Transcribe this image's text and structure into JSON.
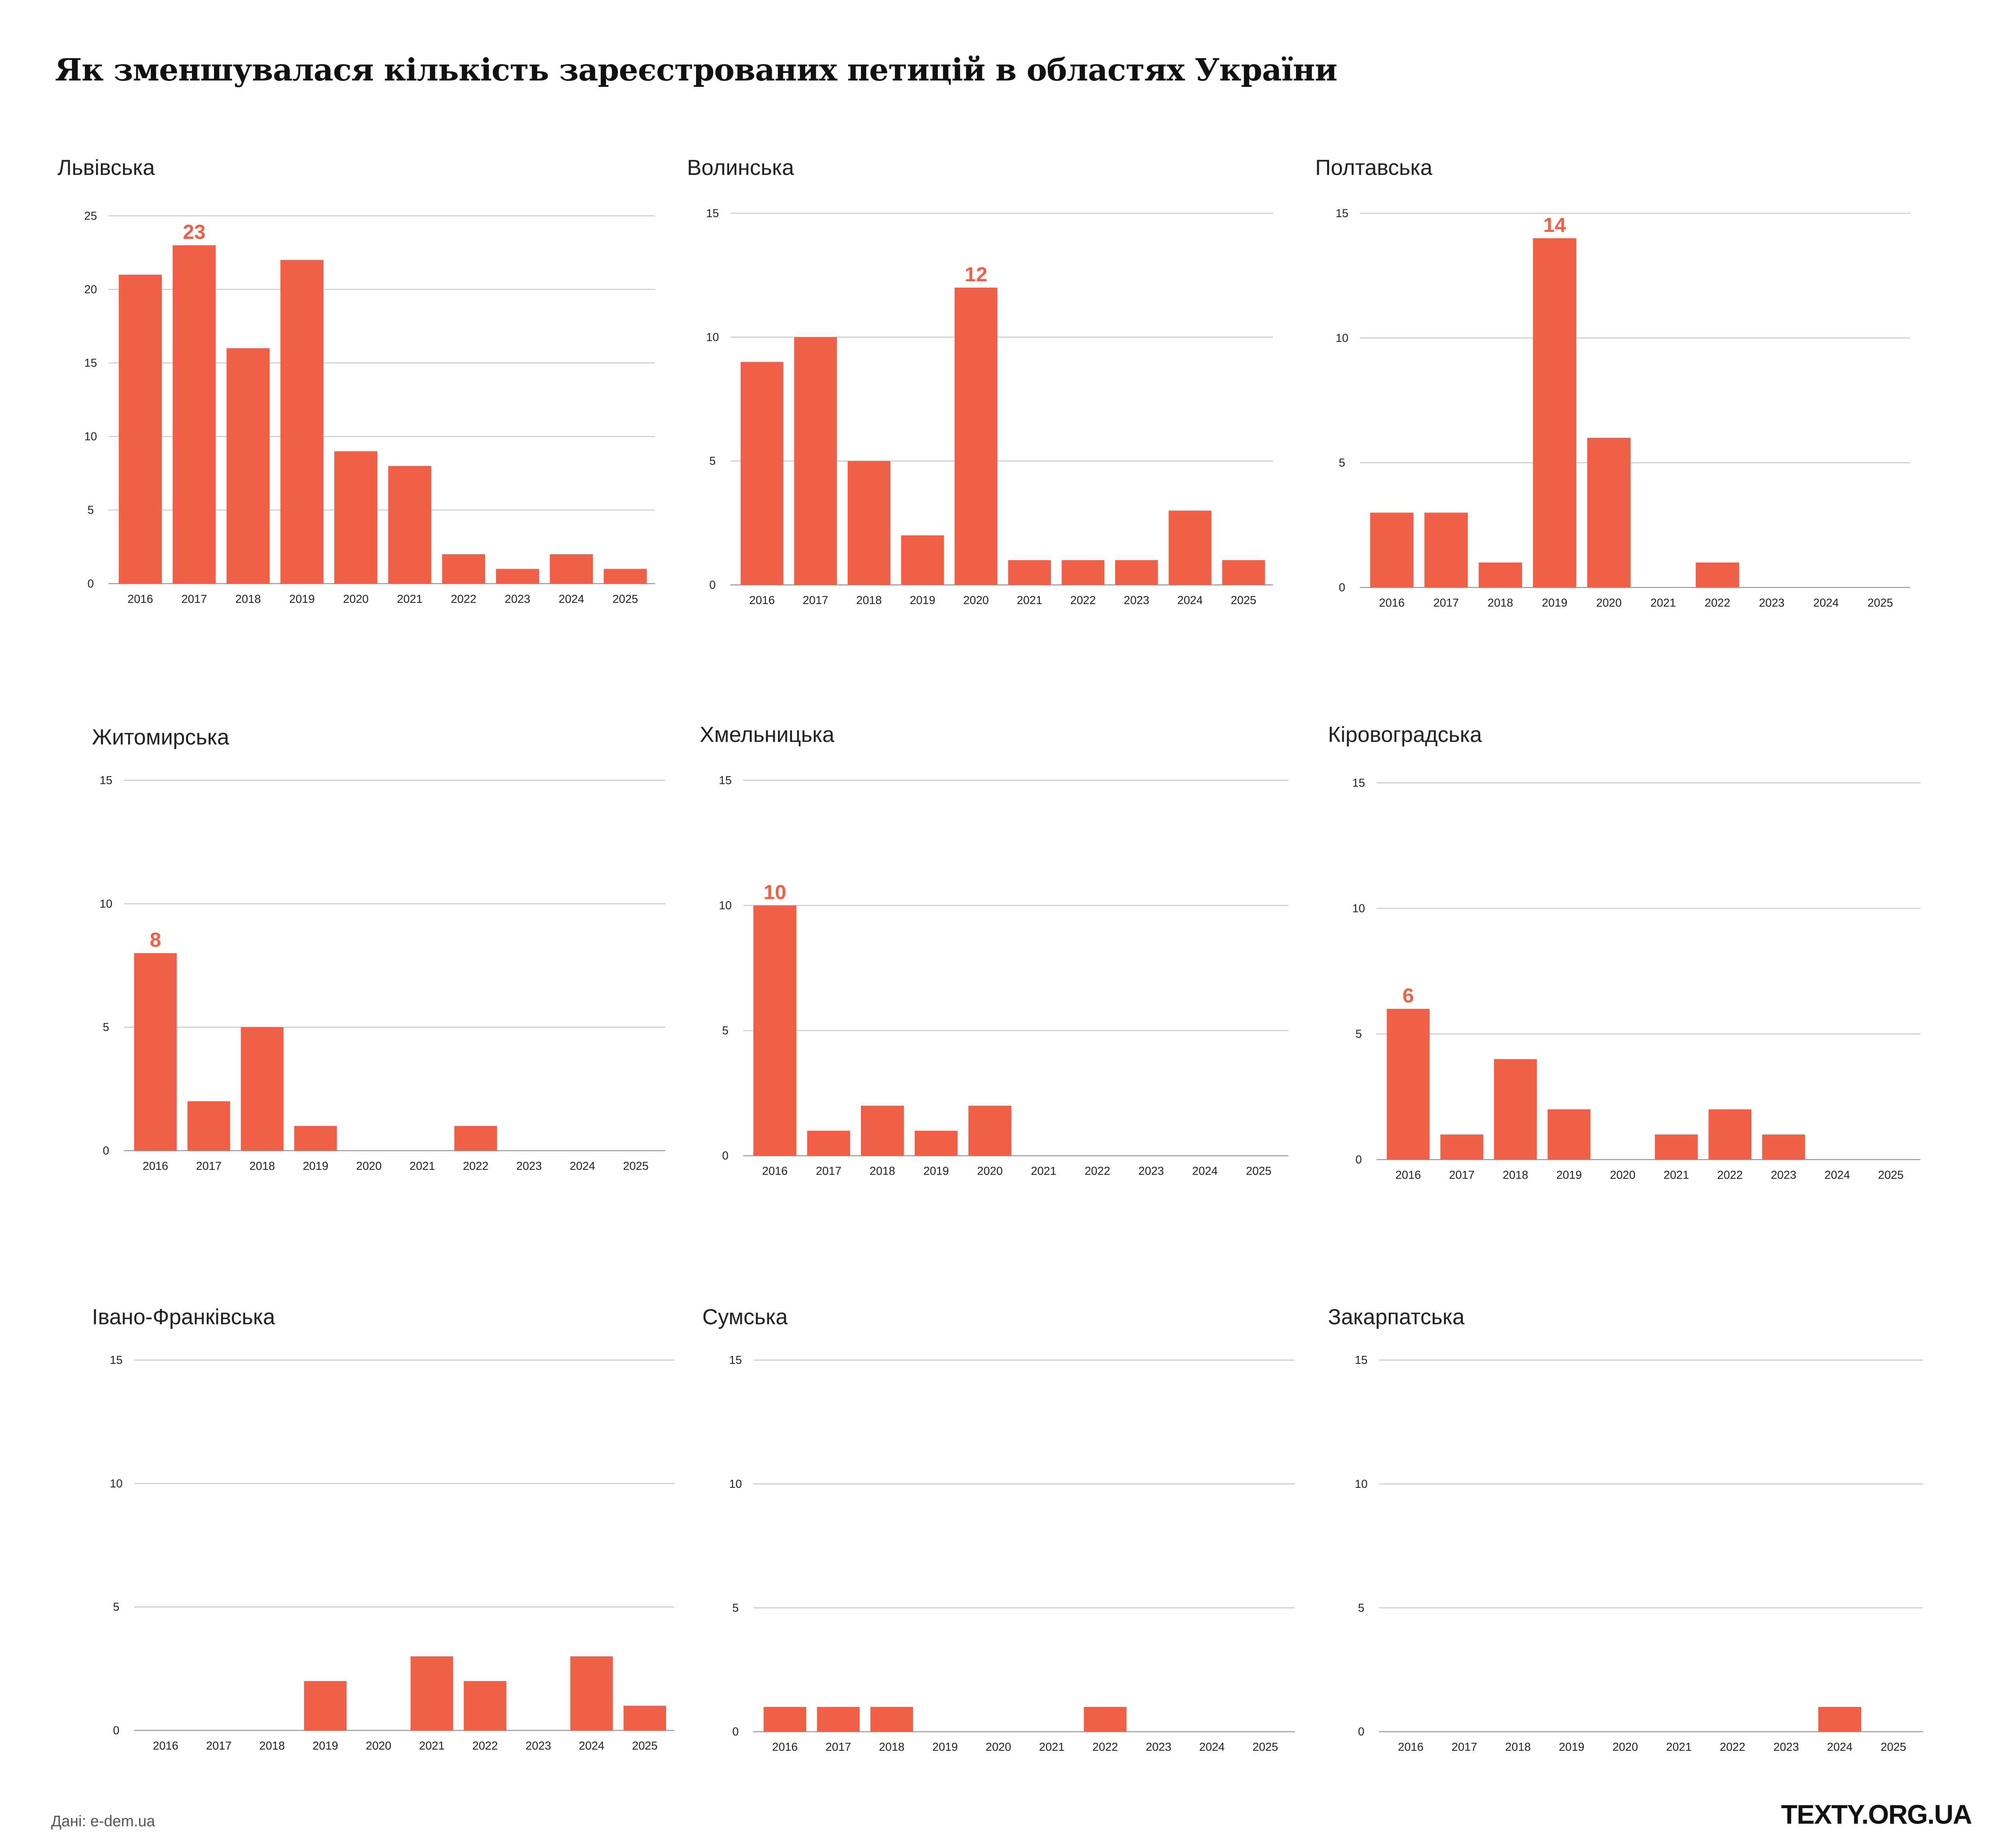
{
  "title": "Як зменшувалася кількість зареєстрованих петицій в областях України",
  "source": "Дані: e-dem.ua",
  "logo": "TEXTY.ORG.UA",
  "colors": {
    "bar": "#f06048",
    "grid": "#cccccc",
    "label": "#f06048"
  },
  "chart_data": [
    {
      "type": "bar",
      "title": "Львівська",
      "categories": [
        "2016",
        "2017",
        "2018",
        "2019",
        "2020",
        "2021",
        "2022",
        "2023",
        "2024",
        "2025"
      ],
      "values": [
        21,
        23,
        16,
        22,
        9,
        8,
        2,
        1,
        2,
        1
      ],
      "ylim": [
        0,
        25
      ],
      "yticks": [
        0,
        5,
        10,
        15,
        20,
        25
      ],
      "highlight_label": "23",
      "highlight_index": 1
    },
    {
      "type": "bar",
      "title": "Волинська",
      "categories": [
        "2016",
        "2017",
        "2018",
        "2019",
        "2020",
        "2021",
        "2022",
        "2023",
        "2024",
        "2025"
      ],
      "values": [
        9,
        10,
        5,
        2,
        12,
        1,
        1,
        1,
        3,
        1
      ],
      "ylim": [
        0,
        15
      ],
      "yticks": [
        0,
        5,
        10,
        15
      ],
      "highlight_label": "12",
      "highlight_index": 4
    },
    {
      "type": "bar",
      "title": "Полтавська",
      "categories": [
        "2016",
        "2017",
        "2018",
        "2019",
        "2020",
        "2021",
        "2022",
        "2023",
        "2024",
        "2025"
      ],
      "values": [
        3,
        3,
        1,
        14,
        6,
        0,
        1,
        0,
        0,
        0
      ],
      "ylim": [
        0,
        15
      ],
      "yticks": [
        0,
        5,
        10,
        15
      ],
      "highlight_label": "14",
      "highlight_index": 3
    },
    {
      "type": "bar",
      "title": "Житомирська",
      "categories": [
        "2016",
        "2017",
        "2018",
        "2019",
        "2020",
        "2021",
        "2022",
        "2023",
        "2024",
        "2025"
      ],
      "values": [
        8,
        2,
        5,
        1,
        0,
        0,
        1,
        0,
        0,
        0
      ],
      "ylim": [
        0,
        15
      ],
      "yticks": [
        0,
        5,
        10,
        15
      ],
      "highlight_label": "8",
      "highlight_index": 0
    },
    {
      "type": "bar",
      "title": "Хмельницька",
      "categories": [
        "2016",
        "2017",
        "2018",
        "2019",
        "2020",
        "2021",
        "2022",
        "2023",
        "2024",
        "2025"
      ],
      "values": [
        10,
        1,
        2,
        1,
        2,
        0,
        0,
        0,
        0,
        0
      ],
      "ylim": [
        0,
        15
      ],
      "yticks": [
        0,
        5,
        10,
        15
      ],
      "highlight_label": "10",
      "highlight_index": 0
    },
    {
      "type": "bar",
      "title": "Кіровоградська",
      "categories": [
        "2016",
        "2017",
        "2018",
        "2019",
        "2020",
        "2021",
        "2022",
        "2023",
        "2024",
        "2025"
      ],
      "values": [
        6,
        1,
        4,
        2,
        0,
        1,
        2,
        1,
        0,
        0
      ],
      "ylim": [
        0,
        15
      ],
      "yticks": [
        0,
        5,
        10,
        15
      ],
      "highlight_label": "6",
      "highlight_index": 0
    },
    {
      "type": "bar",
      "title": "Івано-Франківська",
      "categories": [
        "2016",
        "2017",
        "2018",
        "2019",
        "2020",
        "2021",
        "2022",
        "2023",
        "2024",
        "2025"
      ],
      "values": [
        0,
        0,
        0,
        2,
        0,
        3,
        2,
        0,
        3,
        1
      ],
      "ylim": [
        0,
        15
      ],
      "yticks": [
        0,
        5,
        10,
        15
      ]
    },
    {
      "type": "bar",
      "title": "Сумська",
      "categories": [
        "2016",
        "2017",
        "2018",
        "2019",
        "2020",
        "2021",
        "2022",
        "2023",
        "2024",
        "2025"
      ],
      "values": [
        1,
        1,
        1,
        0,
        0,
        0,
        1,
        0,
        0,
        0
      ],
      "ylim": [
        0,
        15
      ],
      "yticks": [
        0,
        5,
        10,
        15
      ]
    },
    {
      "type": "bar",
      "title": "Закарпатська",
      "categories": [
        "2016",
        "2017",
        "2018",
        "2019",
        "2020",
        "2021",
        "2022",
        "2023",
        "2024",
        "2025"
      ],
      "values": [
        0,
        0,
        0,
        0,
        0,
        0,
        0,
        0,
        1,
        0
      ],
      "ylim": [
        0,
        15
      ],
      "yticks": [
        0,
        5,
        10,
        15
      ]
    }
  ]
}
